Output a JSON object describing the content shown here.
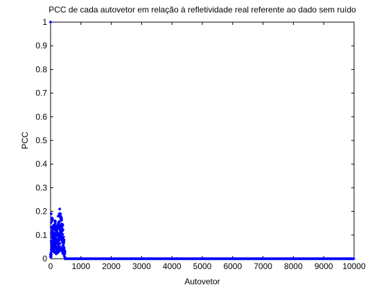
{
  "chart_data": {
    "type": "scatter",
    "title": "PCC de cada autovetor em relação à refletividade real referente ao dado sem ruído",
    "xlabel": "Autovetor",
    "ylabel": "PCC",
    "xlim": [
      0,
      10000
    ],
    "ylim": [
      0,
      1
    ],
    "xticks": [
      0,
      1000,
      2000,
      3000,
      4000,
      5000,
      6000,
      7000,
      8000,
      9000,
      10000
    ],
    "yticks": [
      0,
      0.1,
      0.2,
      0.3,
      0.4,
      0.5,
      0.6,
      0.7,
      0.8,
      0.9,
      1
    ],
    "grid": false,
    "marker_color": "#0000ff",
    "series": [
      {
        "values_summary": {
          "first_point": {
            "x": 1,
            "y": 1
          },
          "dense_region": {
            "x_range": [
              1,
              470
            ],
            "y_range": [
              0.0,
              0.21
            ],
            "note_points": [
              [
                20,
                0.19
              ],
              [
                60,
                0.17
              ],
              [
                100,
                0.14
              ],
              [
                150,
                0.16
              ],
              [
                200,
                0.12
              ],
              [
                250,
                0.18
              ],
              [
                300,
                0.21
              ],
              [
                330,
                0.19
              ],
              [
                360,
                0.17
              ],
              [
                400,
                0.14
              ],
              [
                440,
                0.08
              ],
              [
                470,
                0.03
              ]
            ]
          },
          "tail_region": {
            "x_range": [
              470,
              10000
            ],
            "y": 0.0
          }
        }
      }
    ]
  }
}
